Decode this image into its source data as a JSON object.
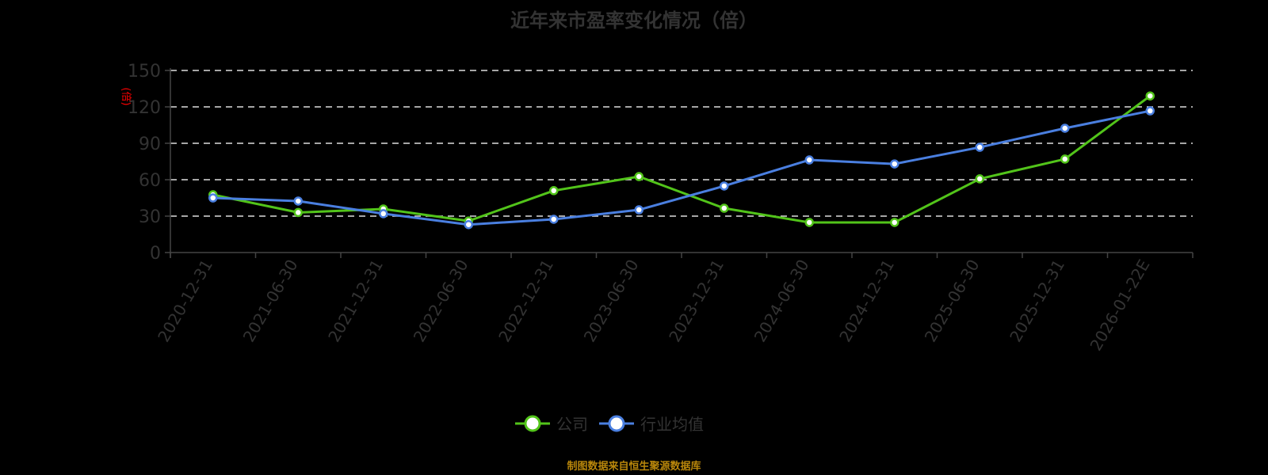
{
  "title": "近年来市盈率变化情况（倍）",
  "footer": "制图数据来自恒生聚源数据库",
  "yaxis_unit_label": "(倍)",
  "colors": {
    "company": "#52c41a",
    "industry": "#4a7fe0",
    "axis_text": "#333333",
    "grid": "#dddddd",
    "footer": "#b8860b",
    "unit_label": "#ff0000"
  },
  "legend": [
    {
      "name": "公司",
      "color": "#52c41a"
    },
    {
      "name": "行业均值",
      "color": "#4a7fe0"
    }
  ],
  "chart_data": {
    "type": "line",
    "title": "近年来市盈率变化情况（倍）",
    "xlabel": "",
    "ylabel": "(倍)",
    "ylim": [
      0,
      150
    ],
    "yticks": [
      0,
      30,
      60,
      90,
      120,
      150
    ],
    "grid": true,
    "legend_position": "bottom",
    "categories": [
      "2020-12-31",
      "2021-06-30",
      "2021-12-31",
      "2022-06-30",
      "2022-12-31",
      "2023-06-30",
      "2023-12-31",
      "2024-06-30",
      "2024-12-31",
      "2025-06-30",
      "2025-12-31",
      "2026-01-22E"
    ],
    "series": [
      {
        "name": "公司",
        "values": [
          47.6,
          33.0,
          35.9,
          26.0,
          51.0,
          62.6,
          36.5,
          24.8,
          24.8,
          60.7,
          77.0,
          129.0
        ]
      },
      {
        "name": "行业均值",
        "values": [
          45.0,
          42.4,
          32.0,
          23.0,
          27.4,
          35.2,
          54.8,
          76.3,
          73.0,
          86.7,
          102.4,
          116.7
        ]
      }
    ]
  }
}
